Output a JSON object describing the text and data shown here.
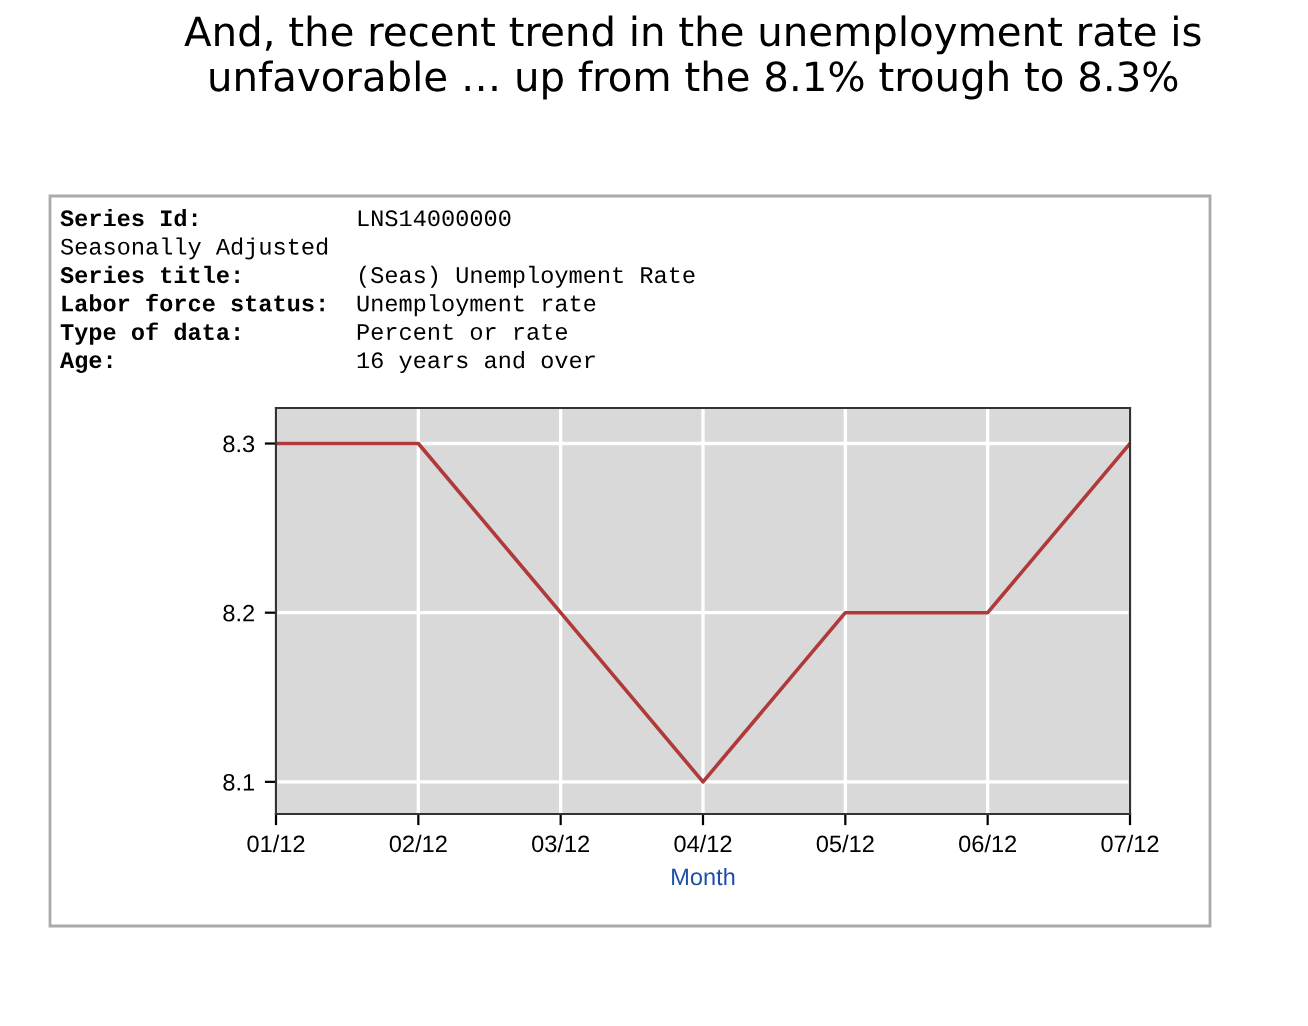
{
  "chart_data": {
    "type": "line",
    "title": "And, the recent trend in the unemployment rate is unfavorable … up from the 8.1% trough to 8.3%",
    "xlabel": "Month",
    "categories": [
      "01/12",
      "02/12",
      "03/12",
      "04/12",
      "05/12",
      "06/12",
      "07/12"
    ],
    "series": [
      {
        "color": "#b03a3a",
        "values": [
          8.3,
          8.3,
          8.2,
          8.1,
          8.2,
          8.2,
          8.3
        ]
      }
    ],
    "ylim": [
      8.081,
      8.321
    ],
    "yticks": [
      8.1,
      8.2,
      8.3
    ],
    "grid": true,
    "marker": "none",
    "line_style": "solid",
    "annotations": [
      "Series Id:           LNS14000000",
      "Seasonally Adjusted",
      "Series title:        (Seas) Unemployment Rate",
      "Labor force status:  Unemployment rate",
      "Type of data:        Percent or rate",
      "Age:                 16 years and over"
    ]
  }
}
